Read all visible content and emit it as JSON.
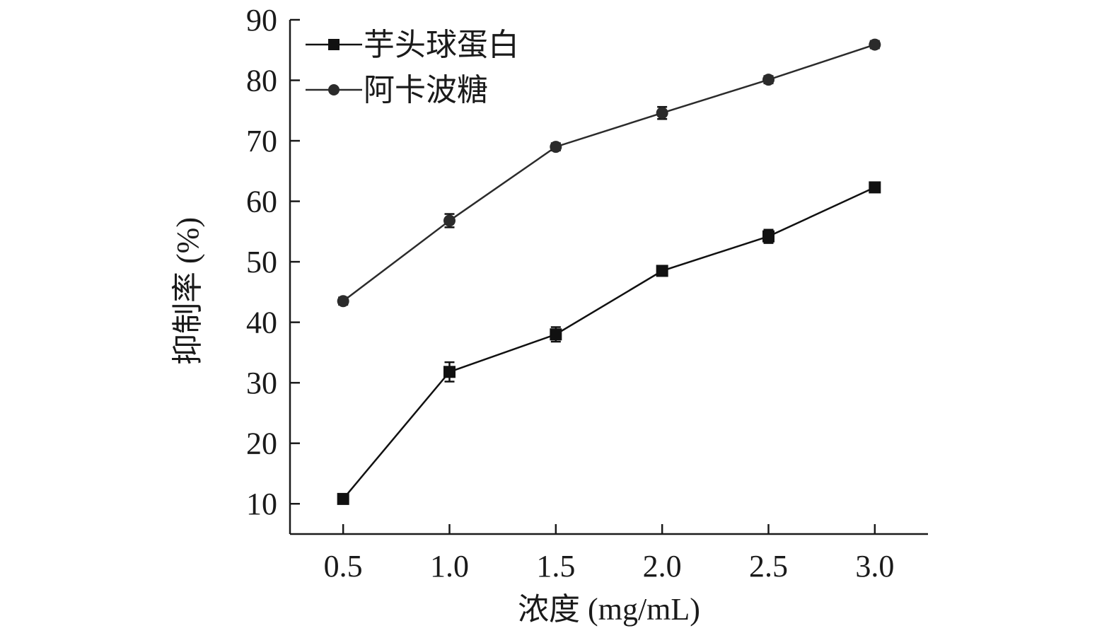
{
  "chart_data": {
    "type": "line",
    "xlabel": "浓度 (mg/mL)",
    "ylabel": "抑制率 (%)",
    "x": [
      0.5,
      1.0,
      1.5,
      2.0,
      2.5,
      3.0
    ],
    "x_tick_labels": [
      "0.5",
      "1.0",
      "1.5",
      "2.0",
      "2.5",
      "3.0"
    ],
    "y_ticks": [
      10,
      20,
      30,
      40,
      50,
      60,
      70,
      80,
      90
    ],
    "y_tick_labels": [
      "10",
      "20",
      "30",
      "40",
      "50",
      "60",
      "70",
      "80",
      "90"
    ],
    "xlim": [
      0.25,
      3.25
    ],
    "ylim": [
      5,
      90
    ],
    "grid": false,
    "legend_position": "top-left",
    "series": [
      {
        "name": "芋头球蛋白",
        "marker": "square",
        "color": "#111111",
        "values": [
          10.8,
          31.8,
          38.0,
          48.5,
          54.2,
          62.3
        ],
        "errors": [
          0.6,
          1.6,
          1.2,
          0.8,
          1.1,
          0.8
        ]
      },
      {
        "name": "阿卡波糖",
        "marker": "circle",
        "color": "#2b2b2b",
        "values": [
          43.5,
          56.8,
          69.0,
          74.6,
          80.1,
          85.9
        ],
        "errors": [
          0.6,
          1.1,
          0.6,
          1.0,
          0.6,
          0.6
        ]
      }
    ]
  }
}
